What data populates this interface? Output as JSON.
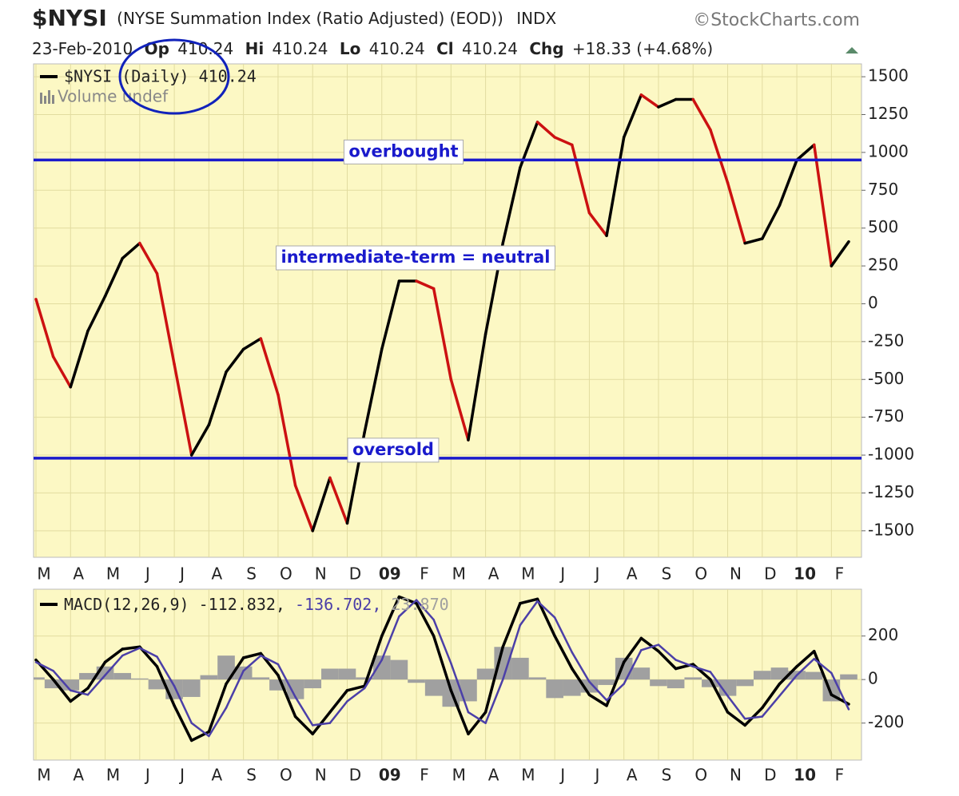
{
  "header": {
    "symbol": "$NYSI",
    "description": "(NYSE Summation Index (Ratio Adjusted) (EOD))",
    "exchange": "INDX",
    "source": "©StockCharts.com",
    "date": "23-Feb-2010",
    "open_label": "Op",
    "open": "410.24",
    "high_label": "Hi",
    "high": "410.24",
    "low_label": "Lo",
    "low": "410.24",
    "close_label": "Cl",
    "close": "410.24",
    "change_label": "Chg",
    "change": "+18.33 (+4.68%)"
  },
  "chart_data": [
    {
      "type": "line",
      "categories": [
        "M",
        null,
        "A",
        null,
        "M",
        null,
        "J",
        null,
        "J",
        null,
        "A",
        null,
        "S",
        null,
        "O",
        null,
        "N",
        null,
        "D",
        null,
        "09",
        null,
        "F",
        null,
        "M",
        null,
        "A",
        null,
        "M",
        null,
        "J",
        null,
        "J",
        null,
        "A",
        null,
        "S",
        null,
        "O",
        null,
        "N",
        null,
        "D",
        null,
        "10",
        null,
        "F",
        null
      ],
      "series": [
        {
          "name": "$NYSI (Daily) 410.24",
          "color": "#000000",
          "down_color": "#cc1111",
          "values": [
            30,
            -350,
            -550,
            -180,
            50,
            300,
            400,
            200,
            -400,
            -1000,
            -800,
            -450,
            -300,
            -230,
            -600,
            -1200,
            -1500,
            -1150,
            -1450,
            -850,
            -300,
            150,
            150,
            100,
            -500,
            -900,
            -200,
            400,
            900,
            1200,
            1100,
            1050,
            600,
            450,
            1100,
            1380,
            1300,
            1350,
            1350,
            1150,
            800,
            400,
            430,
            650,
            950,
            1050,
            250,
            410.24
          ]
        }
      ],
      "volume_label": "Volume undef",
      "ylim": [
        -1675,
        1585
      ],
      "yticks": [
        -1500,
        -1250,
        -1000,
        -750,
        -500,
        -250,
        0,
        250,
        500,
        750,
        1000,
        1250,
        1500
      ],
      "grid": true,
      "reference_lines": [
        {
          "value": 950,
          "label": "overbought",
          "color": "#1a1acc"
        },
        {
          "value": -1020,
          "label": "oversold",
          "color": "#1a1acc"
        }
      ],
      "annotation": "intermediate-term = neutral"
    },
    {
      "type": "macd",
      "categories": [
        "M",
        null,
        "A",
        null,
        "M",
        null,
        "J",
        null,
        "J",
        null,
        "A",
        null,
        "S",
        null,
        "O",
        null,
        "N",
        null,
        "D",
        null,
        "09",
        null,
        "F",
        null,
        "M",
        null,
        "A",
        null,
        "M",
        null,
        "J",
        null,
        "J",
        null,
        "A",
        null,
        "S",
        null,
        "O",
        null,
        "N",
        null,
        "D",
        null,
        "10",
        null,
        "F",
        null
      ],
      "series": [
        {
          "name": "MACD(12,26,9) -112.832,",
          "color": "#000000",
          "kind": "line",
          "values": [
            90,
            0,
            -100,
            -40,
            80,
            140,
            150,
            60,
            -120,
            -280,
            -240,
            -20,
            100,
            120,
            20,
            -170,
            -250,
            -150,
            -50,
            -30,
            200,
            380,
            350,
            200,
            -50,
            -250,
            -150,
            150,
            350,
            370,
            200,
            50,
            -70,
            -120,
            80,
            190,
            130,
            50,
            70,
            0,
            -150,
            -210,
            -130,
            -20,
            60,
            130,
            -70,
            -112.832
          ]
        },
        {
          "name": "-136.702,",
          "color": "#4b3fa8",
          "kind": "line",
          "values": [
            80,
            40,
            -50,
            -70,
            20,
            110,
            145,
            105,
            -30,
            -200,
            -260,
            -130,
            40,
            110,
            70,
            -80,
            -210,
            -200,
            -100,
            -40,
            90,
            290,
            365,
            275,
            75,
            -150,
            -200,
            0,
            250,
            360,
            285,
            125,
            -10,
            -95,
            -20,
            135,
            160,
            90,
            60,
            35,
            -75,
            -180,
            -170,
            -75,
            20,
            95,
            30,
            -136.702
          ]
        },
        {
          "name": "23.870",
          "color": "#a0a0a0",
          "kind": "histogram",
          "values": [
            10,
            -40,
            -50,
            30,
            60,
            30,
            5,
            -45,
            -90,
            -80,
            20,
            110,
            60,
            10,
            -50,
            -90,
            -40,
            50,
            50,
            10,
            110,
            90,
            -15,
            -75,
            -125,
            -100,
            50,
            150,
            100,
            10,
            -85,
            -75,
            -60,
            -25,
            100,
            55,
            -30,
            -40,
            10,
            -35,
            -75,
            -30,
            40,
            55,
            40,
            35,
            -100,
            23.87
          ]
        }
      ],
      "ylim": [
        -370,
        415
      ],
      "yticks": [
        -200,
        0,
        200
      ],
      "grid": true
    }
  ]
}
